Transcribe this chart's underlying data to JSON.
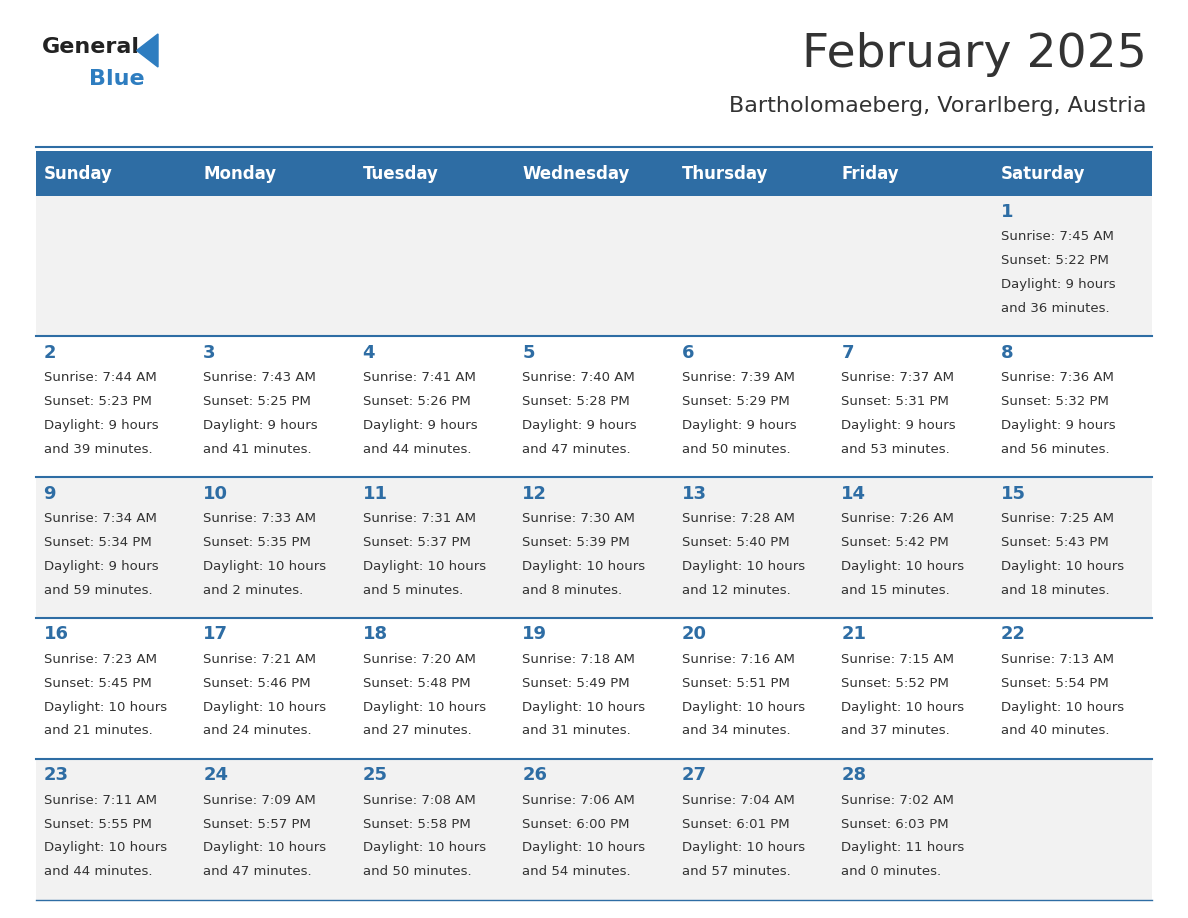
{
  "title": "February 2025",
  "subtitle": "Bartholomaeberg, Vorarlberg, Austria",
  "days_of_week": [
    "Sunday",
    "Monday",
    "Tuesday",
    "Wednesday",
    "Thursday",
    "Friday",
    "Saturday"
  ],
  "header_bg": "#2E6DA4",
  "header_text": "#FFFFFF",
  "cell_bg_odd": "#F2F2F2",
  "cell_bg_even": "#FFFFFF",
  "divider_color": "#2E6DA4",
  "title_color": "#333333",
  "subtitle_color": "#333333",
  "day_num_color": "#2E6DA4",
  "cell_text_color": "#333333",
  "logo_general_color": "#222222",
  "logo_blue_color": "#2E7DC0",
  "weeks": [
    [
      null,
      null,
      null,
      null,
      null,
      null,
      {
        "day": 1,
        "sunrise": "7:45 AM",
        "sunset": "5:22 PM",
        "daylight": "9 hours and 36 minutes."
      }
    ],
    [
      {
        "day": 2,
        "sunrise": "7:44 AM",
        "sunset": "5:23 PM",
        "daylight": "9 hours and 39 minutes."
      },
      {
        "day": 3,
        "sunrise": "7:43 AM",
        "sunset": "5:25 PM",
        "daylight": "9 hours and 41 minutes."
      },
      {
        "day": 4,
        "sunrise": "7:41 AM",
        "sunset": "5:26 PM",
        "daylight": "9 hours and 44 minutes."
      },
      {
        "day": 5,
        "sunrise": "7:40 AM",
        "sunset": "5:28 PM",
        "daylight": "9 hours and 47 minutes."
      },
      {
        "day": 6,
        "sunrise": "7:39 AM",
        "sunset": "5:29 PM",
        "daylight": "9 hours and 50 minutes."
      },
      {
        "day": 7,
        "sunrise": "7:37 AM",
        "sunset": "5:31 PM",
        "daylight": "9 hours and 53 minutes."
      },
      {
        "day": 8,
        "sunrise": "7:36 AM",
        "sunset": "5:32 PM",
        "daylight": "9 hours and 56 minutes."
      }
    ],
    [
      {
        "day": 9,
        "sunrise": "7:34 AM",
        "sunset": "5:34 PM",
        "daylight": "9 hours and 59 minutes."
      },
      {
        "day": 10,
        "sunrise": "7:33 AM",
        "sunset": "5:35 PM",
        "daylight": "10 hours and 2 minutes."
      },
      {
        "day": 11,
        "sunrise": "7:31 AM",
        "sunset": "5:37 PM",
        "daylight": "10 hours and 5 minutes."
      },
      {
        "day": 12,
        "sunrise": "7:30 AM",
        "sunset": "5:39 PM",
        "daylight": "10 hours and 8 minutes."
      },
      {
        "day": 13,
        "sunrise": "7:28 AM",
        "sunset": "5:40 PM",
        "daylight": "10 hours and 12 minutes."
      },
      {
        "day": 14,
        "sunrise": "7:26 AM",
        "sunset": "5:42 PM",
        "daylight": "10 hours and 15 minutes."
      },
      {
        "day": 15,
        "sunrise": "7:25 AM",
        "sunset": "5:43 PM",
        "daylight": "10 hours and 18 minutes."
      }
    ],
    [
      {
        "day": 16,
        "sunrise": "7:23 AM",
        "sunset": "5:45 PM",
        "daylight": "10 hours and 21 minutes."
      },
      {
        "day": 17,
        "sunrise": "7:21 AM",
        "sunset": "5:46 PM",
        "daylight": "10 hours and 24 minutes."
      },
      {
        "day": 18,
        "sunrise": "7:20 AM",
        "sunset": "5:48 PM",
        "daylight": "10 hours and 27 minutes."
      },
      {
        "day": 19,
        "sunrise": "7:18 AM",
        "sunset": "5:49 PM",
        "daylight": "10 hours and 31 minutes."
      },
      {
        "day": 20,
        "sunrise": "7:16 AM",
        "sunset": "5:51 PM",
        "daylight": "10 hours and 34 minutes."
      },
      {
        "day": 21,
        "sunrise": "7:15 AM",
        "sunset": "5:52 PM",
        "daylight": "10 hours and 37 minutes."
      },
      {
        "day": 22,
        "sunrise": "7:13 AM",
        "sunset": "5:54 PM",
        "daylight": "10 hours and 40 minutes."
      }
    ],
    [
      {
        "day": 23,
        "sunrise": "7:11 AM",
        "sunset": "5:55 PM",
        "daylight": "10 hours and 44 minutes."
      },
      {
        "day": 24,
        "sunrise": "7:09 AM",
        "sunset": "5:57 PM",
        "daylight": "10 hours and 47 minutes."
      },
      {
        "day": 25,
        "sunrise": "7:08 AM",
        "sunset": "5:58 PM",
        "daylight": "10 hours and 50 minutes."
      },
      {
        "day": 26,
        "sunrise": "7:06 AM",
        "sunset": "6:00 PM",
        "daylight": "10 hours and 54 minutes."
      },
      {
        "day": 27,
        "sunrise": "7:04 AM",
        "sunset": "6:01 PM",
        "daylight": "10 hours and 57 minutes."
      },
      {
        "day": 28,
        "sunrise": "7:02 AM",
        "sunset": "6:03 PM",
        "daylight": "11 hours and 0 minutes."
      },
      null
    ]
  ]
}
